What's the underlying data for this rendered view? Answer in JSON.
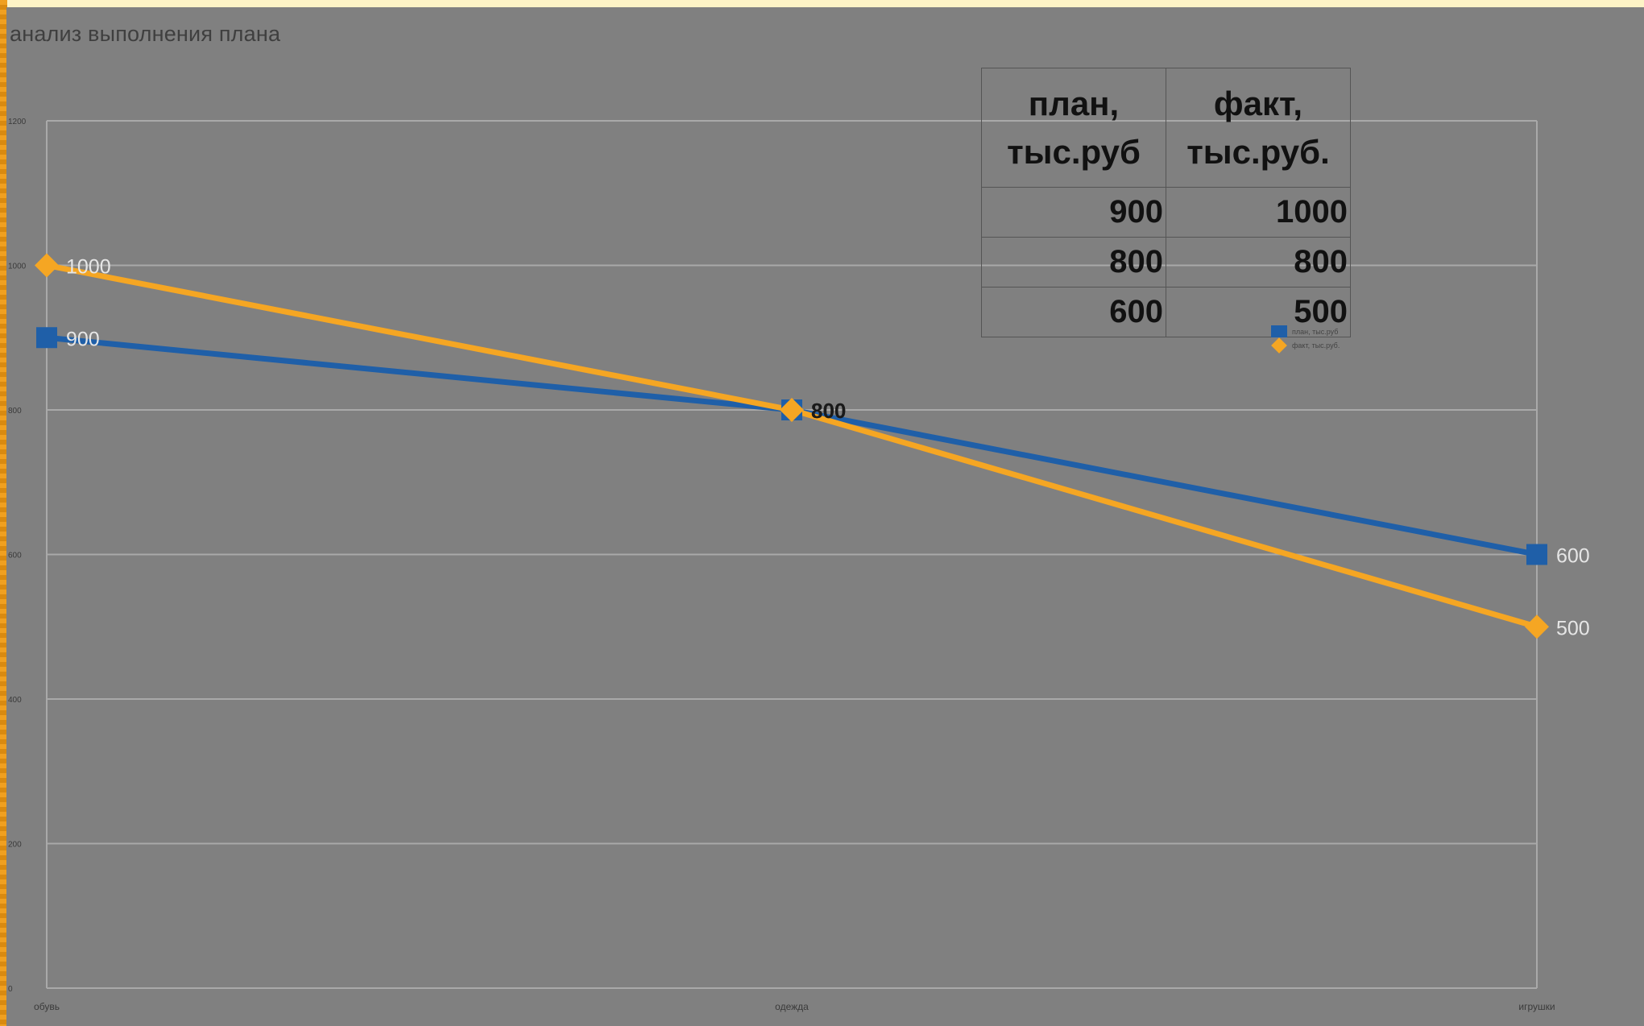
{
  "chart_data": {
    "type": "line",
    "title": "анализ выполнения плана",
    "categories": [
      "обувь",
      "одежда",
      "игрушки"
    ],
    "series": [
      {
        "name": "план, тыс.руб",
        "values": [
          900,
          800,
          600
        ],
        "color": "#1f5fa8",
        "marker": "square"
      },
      {
        "name": "факт, тыс.руб.",
        "values": [
          1000,
          800,
          500
        ],
        "color": "#f5a623",
        "marker": "diamond"
      }
    ],
    "yticks": [
      0,
      200,
      400,
      600,
      800,
      1000,
      1200
    ],
    "ylim": [
      0,
      1200
    ],
    "xlabel": "",
    "ylabel": "",
    "grid": true,
    "legend_position": "right",
    "data_labels": true
  },
  "table": {
    "headers": [
      "план, тыс.руб",
      "факт, тыс.руб."
    ],
    "rows": [
      [
        "900",
        "1000"
      ],
      [
        "800",
        "800"
      ],
      [
        "600",
        "500"
      ]
    ]
  },
  "legend": [
    {
      "label": "план, тыс.руб",
      "color": "#1f5fa8",
      "marker": "square"
    },
    {
      "label": "факт, тыс.руб.",
      "color": "#f5a623",
      "marker": "diamond"
    }
  ]
}
